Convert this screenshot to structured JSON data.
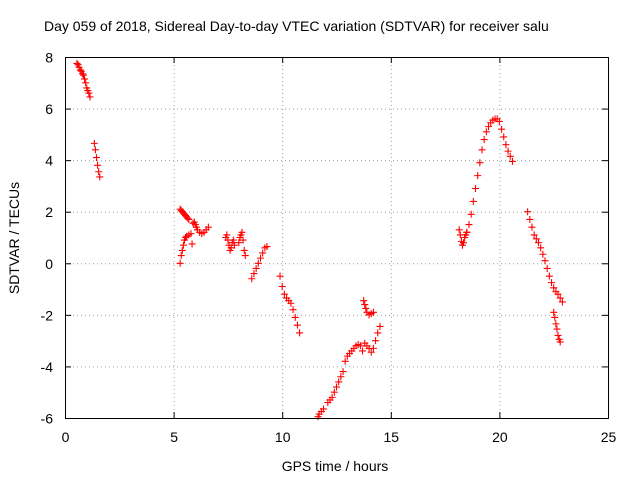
{
  "chart_data": {
    "type": "scatter",
    "title": "Day 059 of 2018, Sidereal Day-to-day VTEC variation (SDTVAR) for receiver salu",
    "xlabel": "GPS time / hours",
    "ylabel": "SDTVAR / TECUs",
    "xlim": [
      0,
      25
    ],
    "ylim": [
      -6,
      8
    ],
    "xticks": [
      "0",
      "5",
      "10",
      "15",
      "20",
      "25"
    ],
    "yticks": [
      "-6",
      "-4",
      "-2",
      "0",
      "2",
      "4",
      "6",
      "8"
    ],
    "grid": true,
    "marker": "plus",
    "color": "#ff0000",
    "segments": [
      {
        "x": [
          0.55,
          0.6,
          0.65,
          0.7,
          0.75,
          0.8,
          0.85,
          0.9,
          0.95,
          1.0,
          1.05,
          1.1,
          1.15
        ],
        "y": [
          7.75,
          7.7,
          7.6,
          7.5,
          7.45,
          7.35,
          7.3,
          7.15,
          7.0,
          6.8,
          6.7,
          6.6,
          6.45
        ]
      },
      {
        "x": [
          1.35,
          1.4,
          1.45,
          1.5,
          1.55,
          1.6
        ],
        "y": [
          4.65,
          4.4,
          4.1,
          3.8,
          3.55,
          3.35
        ]
      },
      {
        "x": [
          5.3,
          5.35,
          5.4,
          5.45,
          5.5,
          5.55,
          5.6,
          5.65,
          5.7
        ],
        "y": [
          2.1,
          2.05,
          2.0,
          1.95,
          1.9,
          1.85,
          1.8,
          1.75,
          1.7
        ]
      },
      {
        "x": [
          5.3,
          5.35,
          5.4,
          5.45,
          5.5,
          5.55,
          5.6,
          5.7,
          5.8
        ],
        "y": [
          0.0,
          0.3,
          0.5,
          0.7,
          0.9,
          1.0,
          1.05,
          1.1,
          1.15
        ]
      },
      {
        "x": [
          5.85,
          5.9,
          5.95,
          6.0,
          6.05,
          6.1,
          6.2,
          6.3,
          6.4,
          6.5,
          6.6
        ],
        "y": [
          0.75,
          1.55,
          1.6,
          1.5,
          1.4,
          1.3,
          1.2,
          1.15,
          1.2,
          1.3,
          1.4
        ]
      },
      {
        "x": [
          7.4,
          7.45,
          7.5,
          7.55,
          7.6,
          7.65,
          7.7,
          7.75,
          7.8
        ],
        "y": [
          1.0,
          1.1,
          0.9,
          0.7,
          0.5,
          0.6,
          0.8,
          0.9,
          0.7
        ]
      },
      {
        "x": [
          8.0,
          8.05,
          8.1,
          8.15,
          8.2,
          8.25,
          8.3
        ],
        "y": [
          0.8,
          1.0,
          1.1,
          1.2,
          0.9,
          0.5,
          0.3
        ]
      },
      {
        "x": [
          8.6,
          8.7,
          8.8,
          8.9,
          9.0,
          9.1,
          9.2,
          9.3
        ],
        "y": [
          -0.6,
          -0.4,
          -0.2,
          0.0,
          0.2,
          0.4,
          0.6,
          0.65
        ]
      },
      {
        "x": [
          9.9,
          10.0,
          10.1,
          10.2,
          10.3,
          10.4,
          10.5,
          10.6,
          10.7,
          10.8
        ],
        "y": [
          -0.5,
          -0.9,
          -1.2,
          -1.35,
          -1.45,
          -1.55,
          -1.8,
          -2.1,
          -2.4,
          -2.7
        ]
      },
      {
        "x": [
          11.65,
          11.7,
          11.8,
          11.9
        ],
        "y": [
          -5.95,
          -5.85,
          -5.75,
          -5.65
        ]
      },
      {
        "x": [
          12.1,
          12.2,
          12.3,
          12.4,
          12.5,
          12.6,
          12.7
        ],
        "y": [
          -5.4,
          -5.3,
          -5.2,
          -5.0,
          -4.8,
          -4.6,
          -4.4
        ]
      },
      {
        "x": [
          12.8,
          12.9,
          13.0,
          13.1,
          13.2,
          13.3,
          13.4,
          13.5,
          13.6,
          13.7,
          13.8,
          13.9,
          14.0,
          14.1,
          14.2,
          14.3,
          14.4,
          14.5
        ],
        "y": [
          -4.2,
          -3.8,
          -3.6,
          -3.5,
          -3.4,
          -3.3,
          -3.2,
          -3.15,
          -3.2,
          -3.4,
          -3.1,
          -3.2,
          -3.3,
          -3.45,
          -3.3,
          -3.0,
          -2.7,
          -2.45
        ]
      },
      {
        "x": [
          13.75,
          13.8,
          13.85,
          13.9,
          14.0,
          14.1,
          14.2
        ],
        "y": [
          -1.45,
          -1.6,
          -1.75,
          -1.9,
          -2.0,
          -1.95,
          -1.9
        ]
      },
      {
        "x": [
          18.15,
          18.2,
          18.25,
          18.3,
          18.35,
          18.4,
          18.45,
          18.5
        ],
        "y": [
          1.3,
          1.1,
          0.85,
          0.7,
          0.8,
          1.0,
          1.1,
          1.2
        ]
      },
      {
        "x": [
          18.5,
          18.6,
          18.7,
          18.8,
          18.9,
          19.0,
          19.1,
          19.2,
          19.3,
          19.4,
          19.5,
          19.6,
          19.7,
          19.8,
          19.9,
          20.0
        ],
        "y": [
          1.2,
          1.5,
          1.9,
          2.4,
          2.9,
          3.4,
          3.9,
          4.4,
          4.8,
          5.1,
          5.3,
          5.45,
          5.55,
          5.6,
          5.6,
          5.5
        ]
      },
      {
        "x": [
          20.1,
          20.2,
          20.3,
          20.4,
          20.5,
          20.6
        ],
        "y": [
          5.2,
          4.9,
          4.6,
          4.35,
          4.15,
          3.95
        ]
      },
      {
        "x": [
          21.3,
          21.4,
          21.5,
          21.6,
          21.7,
          21.8,
          21.9,
          22.0,
          22.1,
          22.2,
          22.3,
          22.4,
          22.5,
          22.6,
          22.7,
          22.8,
          22.9
        ],
        "y": [
          2.0,
          1.7,
          1.4,
          1.1,
          0.95,
          0.8,
          0.6,
          0.35,
          0.1,
          -0.2,
          -0.5,
          -0.75,
          -0.95,
          -1.1,
          -1.2,
          -1.35,
          -1.5
        ]
      },
      {
        "x": [
          22.5,
          22.55,
          22.6,
          22.65,
          22.7,
          22.75,
          22.8
        ],
        "y": [
          -1.9,
          -2.1,
          -2.35,
          -2.55,
          -2.8,
          -2.95,
          -3.05
        ]
      }
    ]
  }
}
